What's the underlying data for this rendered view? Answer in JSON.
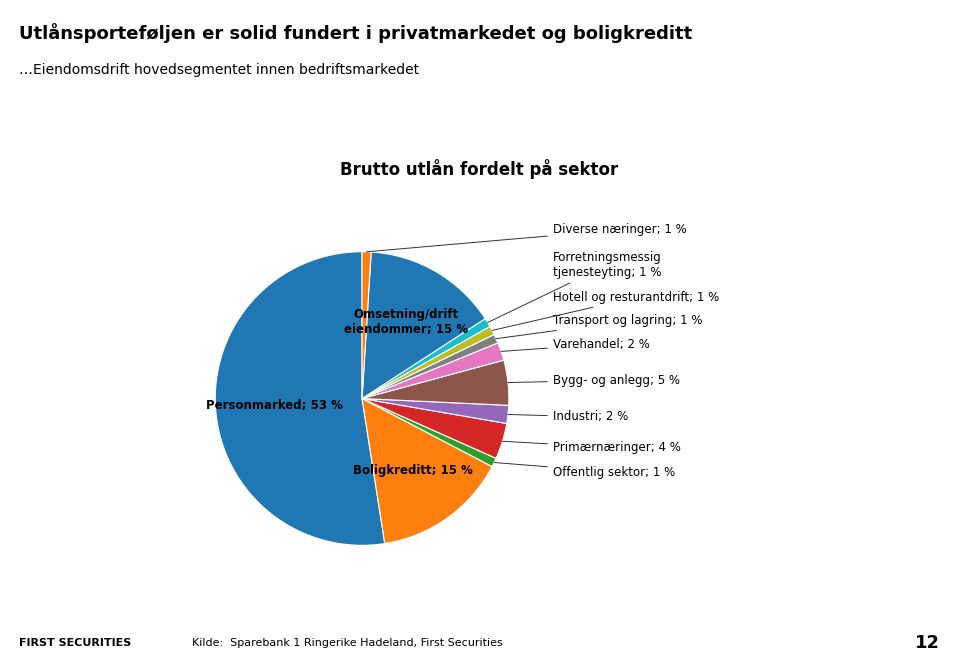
{
  "title": "Utlånsporteføljen er solid fundert i privatmarkedet og boligkreditt",
  "subtitle": "…Eiendomsdrift hovedsegmentet innen bedriftsmarkedet",
  "annotations": [
    "FIRST SECURITIES",
    "Kilde:  Sparebank 1 Ringerike Hadeland, First Securities",
    "12"
  ],
  "chart_data": {
    "type": "pie",
    "title": "Brutto utlån fordelt på sektor",
    "categories": [
      "Personmarked; 53 %",
      "Boligkreditt; 15 %",
      "Offentlig sektor; 1 %",
      "Primærnæringer; 4 %",
      "Industri; 2 %",
      "Bygg- og anlegg; 5 %",
      "Varehandel; 2 %",
      "Transport og lagring; 1 %",
      "Hotell og resturantdrift; 1 %",
      "Forretningsmessig\ntjenesteyting; 1 %",
      "Omsetning/drift\neiendommer; 15 %",
      "Diverse næringer; 1 %"
    ],
    "values": [
      53,
      15,
      1,
      4,
      2,
      5,
      2,
      1,
      1,
      1,
      15,
      1
    ]
  }
}
